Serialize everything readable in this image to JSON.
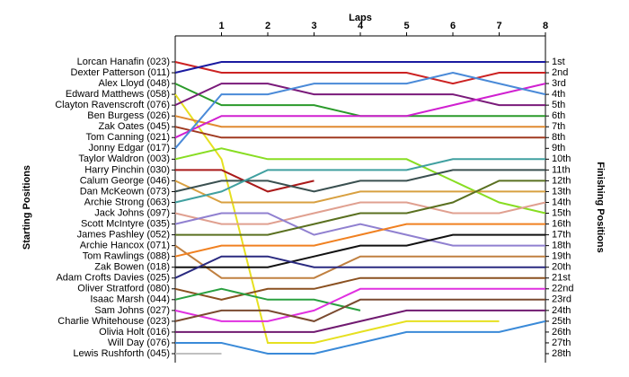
{
  "chart_data": {
    "type": "line",
    "title": "Laps",
    "y_label": "Starting Positions",
    "y2_label": "Finishing Positions",
    "x": [
      0,
      1,
      2,
      3,
      4,
      5,
      6,
      7,
      8
    ],
    "xlim": [
      0,
      8
    ],
    "xticks": [
      1,
      2,
      3,
      4,
      5,
      6,
      7,
      8
    ],
    "ylim": [
      1,
      28
    ],
    "y2lim": [
      1,
      28
    ],
    "inverted": true,
    "yticks": [
      {
        "value": 1,
        "label": "Lorcan Hanafin (023)"
      },
      {
        "value": 2,
        "label": "Dexter Patterson (011)"
      },
      {
        "value": 3,
        "label": "Alex Lloyd (048)"
      },
      {
        "value": 4,
        "label": "Edward Matthews (058)"
      },
      {
        "value": 5,
        "label": "Clayton Ravenscroft (076)"
      },
      {
        "value": 6,
        "label": "Ben Burgess (026)"
      },
      {
        "value": 7,
        "label": "Zak Oates (045)"
      },
      {
        "value": 8,
        "label": "Tom Canning (021)"
      },
      {
        "value": 9,
        "label": "Jonny Edgar (017)"
      },
      {
        "value": 10,
        "label": "Taylor Waldron (003)"
      },
      {
        "value": 11,
        "label": "Harry Pinchin (030)"
      },
      {
        "value": 12,
        "label": "Calum George (046)"
      },
      {
        "value": 13,
        "label": "Dan McKeown (073)"
      },
      {
        "value": 14,
        "label": "Archie Strong (063)"
      },
      {
        "value": 15,
        "label": "Jack Johns (097)"
      },
      {
        "value": 16,
        "label": "Scott McIntyre (035)"
      },
      {
        "value": 17,
        "label": "James Pashley (052)"
      },
      {
        "value": 18,
        "label": "Archie Hancox (071)"
      },
      {
        "value": 19,
        "label": "Tom Rawlings (088)"
      },
      {
        "value": 20,
        "label": "Zak Bowen (018)"
      },
      {
        "value": 21,
        "label": "Adam Crofts Davies (025)"
      },
      {
        "value": 22,
        "label": "Oliver Stratford (080)"
      },
      {
        "value": 23,
        "label": "Isaac Marsh (044)"
      },
      {
        "value": 24,
        "label": "Sam Johns (027)"
      },
      {
        "value": 25,
        "label": "Charlie Whitehouse (023)"
      },
      {
        "value": 26,
        "label": "Olivia Holt (016)"
      },
      {
        "value": 27,
        "label": "Will Day (076)"
      },
      {
        "value": 28,
        "label": "Lewis Rushforth (045)"
      }
    ],
    "y2ticks": [
      {
        "value": 1,
        "label": "1st"
      },
      {
        "value": 2,
        "label": "2nd"
      },
      {
        "value": 3,
        "label": "3rd"
      },
      {
        "value": 4,
        "label": "4th"
      },
      {
        "value": 5,
        "label": "5th"
      },
      {
        "value": 6,
        "label": "6th"
      },
      {
        "value": 7,
        "label": "7th"
      },
      {
        "value": 8,
        "label": "8th"
      },
      {
        "value": 9,
        "label": "9th"
      },
      {
        "value": 10,
        "label": "10th"
      },
      {
        "value": 11,
        "label": "11th"
      },
      {
        "value": 12,
        "label": "12th"
      },
      {
        "value": 13,
        "label": "13th"
      },
      {
        "value": 14,
        "label": "14th"
      },
      {
        "value": 15,
        "label": "15th"
      },
      {
        "value": 16,
        "label": "16th"
      },
      {
        "value": 17,
        "label": "17th"
      },
      {
        "value": 18,
        "label": "18th"
      },
      {
        "value": 19,
        "label": "19th"
      },
      {
        "value": 20,
        "label": "20th"
      },
      {
        "value": 21,
        "label": "21st"
      },
      {
        "value": 22,
        "label": "22nd"
      },
      {
        "value": 23,
        "label": "23rd"
      },
      {
        "value": 24,
        "label": "24th"
      },
      {
        "value": 25,
        "label": "25th"
      },
      {
        "value": 26,
        "label": "26th"
      },
      {
        "value": 27,
        "label": "27th"
      },
      {
        "value": 28,
        "label": "28th"
      }
    ],
    "series": [
      {
        "color": "#cc2222",
        "values": [
          1,
          2,
          2,
          2,
          2,
          2,
          3,
          2,
          2
        ]
      },
      {
        "color": "#1a1aa0",
        "values": [
          2,
          1,
          1,
          1,
          1,
          1,
          1,
          1,
          1
        ]
      },
      {
        "color": "#2a9a2a",
        "values": [
          3,
          5,
          5,
          5,
          6,
          6,
          6,
          6,
          6
        ]
      },
      {
        "color": "#e6e020",
        "values": [
          4,
          10,
          27,
          27,
          26,
          25,
          25,
          25,
          null
        ]
      },
      {
        "color": "#7a1a7a",
        "values": [
          5,
          3,
          3,
          4,
          4,
          4,
          4,
          5,
          5
        ]
      },
      {
        "color": "#e08a30",
        "values": [
          6,
          7,
          7,
          7,
          7,
          7,
          7,
          7,
          7
        ]
      },
      {
        "color": "#a03a20",
        "values": [
          7,
          8,
          8,
          8,
          8,
          8,
          8,
          8,
          8
        ]
      },
      {
        "color": "#d020d0",
        "values": [
          8,
          6,
          6,
          6,
          6,
          6,
          5,
          4,
          3
        ]
      },
      {
        "color": "#4a8ad8",
        "values": [
          9,
          4,
          4,
          3,
          3,
          3,
          2,
          3,
          4
        ]
      },
      {
        "color": "#88dd22",
        "values": [
          10,
          9,
          10,
          10,
          10,
          10,
          12,
          14,
          15
        ]
      },
      {
        "color": "#aa1a1a",
        "values": [
          11,
          11,
          13,
          12,
          null,
          null,
          null,
          null,
          null
        ]
      },
      {
        "color": "#d8a040",
        "values": [
          12,
          14,
          14,
          14,
          13,
          13,
          13,
          13,
          13
        ]
      },
      {
        "color": "#3a5050",
        "values": [
          13,
          12,
          12,
          13,
          12,
          12,
          11,
          11,
          11
        ]
      },
      {
        "color": "#40a0a0",
        "values": [
          14,
          13,
          11,
          11,
          11,
          11,
          10,
          10,
          10
        ]
      },
      {
        "color": "#e0a090",
        "values": [
          15,
          16,
          16,
          15,
          14,
          14,
          15,
          15,
          14
        ]
      },
      {
        "color": "#9080d0",
        "values": [
          16,
          15,
          15,
          17,
          16,
          17,
          18,
          18,
          18
        ]
      },
      {
        "color": "#5a7020",
        "values": [
          17,
          17,
          17,
          16,
          15,
          15,
          14,
          12,
          12
        ]
      },
      {
        "color": "#c08040",
        "values": [
          18,
          21,
          21,
          21,
          19,
          19,
          19,
          19,
          19
        ]
      },
      {
        "color": "#f08020",
        "values": [
          19,
          18,
          18,
          18,
          17,
          16,
          16,
          16,
          16
        ]
      },
      {
        "color": "#111111",
        "values": [
          20,
          20,
          20,
          19,
          18,
          18,
          17,
          17,
          17
        ]
      },
      {
        "color": "#2a2a80",
        "values": [
          21,
          19,
          19,
          20,
          20,
          20,
          20,
          20,
          20
        ]
      },
      {
        "color": "#8a5020",
        "values": [
          22,
          23,
          22,
          22,
          21,
          21,
          21,
          21,
          21
        ]
      },
      {
        "color": "#2aa040",
        "values": [
          23,
          22,
          23,
          23,
          24,
          null,
          null,
          null,
          null
        ]
      },
      {
        "color": "#e030e0",
        "values": [
          24,
          25,
          25,
          24,
          22,
          22,
          22,
          22,
          22
        ]
      },
      {
        "color": "#7a4a30",
        "values": [
          25,
          24,
          24,
          25,
          23,
          23,
          23,
          23,
          23
        ]
      },
      {
        "color": "#701a70",
        "values": [
          26,
          26,
          26,
          26,
          25,
          24,
          24,
          24,
          24
        ]
      },
      {
        "color": "#3a8ad8",
        "values": [
          27,
          27,
          28,
          28,
          27,
          26,
          26,
          26,
          25
        ]
      },
      {
        "color": "#c0c0c0",
        "values": [
          28,
          28,
          null,
          null,
          null,
          null,
          null,
          null,
          null
        ]
      }
    ]
  }
}
